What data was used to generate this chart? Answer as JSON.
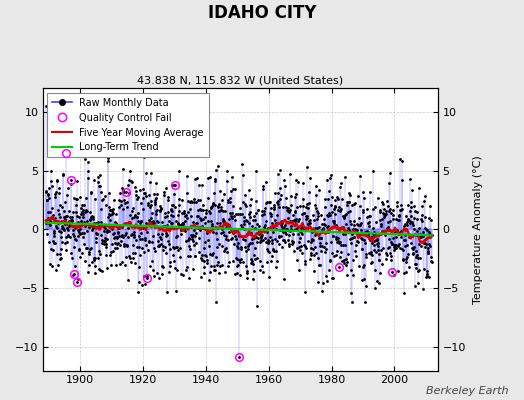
{
  "title": "IDAHO CITY",
  "subtitle": "43.838 N, 115.832 W (United States)",
  "ylabel": "Temperature Anomaly (°C)",
  "ylim": [
    -12,
    12
  ],
  "xlim": [
    1888,
    2014
  ],
  "yticks": [
    -10,
    -5,
    0,
    5,
    10
  ],
  "xticks": [
    1900,
    1920,
    1940,
    1960,
    1980,
    2000
  ],
  "start_year": 1889,
  "end_year": 2011,
  "seed": 137,
  "bg_color": "#e8e8e8",
  "plot_bg_color": "#ffffff",
  "raw_line_color": "#4444ff",
  "raw_marker_color": "#000000",
  "moving_avg_color": "#dd0000",
  "trend_color": "#00cc00",
  "qc_fail_color": "#ff00ff",
  "watermark": "Berkeley Earth",
  "qc_years": [
    1895.5,
    1897.2,
    1898.1,
    1899.0,
    1914.5,
    1921.3,
    1930.2,
    1982.5,
    1999.2
  ],
  "qc_vals": [
    6.5,
    4.2,
    -3.8,
    -4.5,
    3.2,
    -4.1,
    3.8,
    -3.2,
    -3.6
  ],
  "special_qc_year": 1950.5,
  "special_qc_val": -10.8
}
